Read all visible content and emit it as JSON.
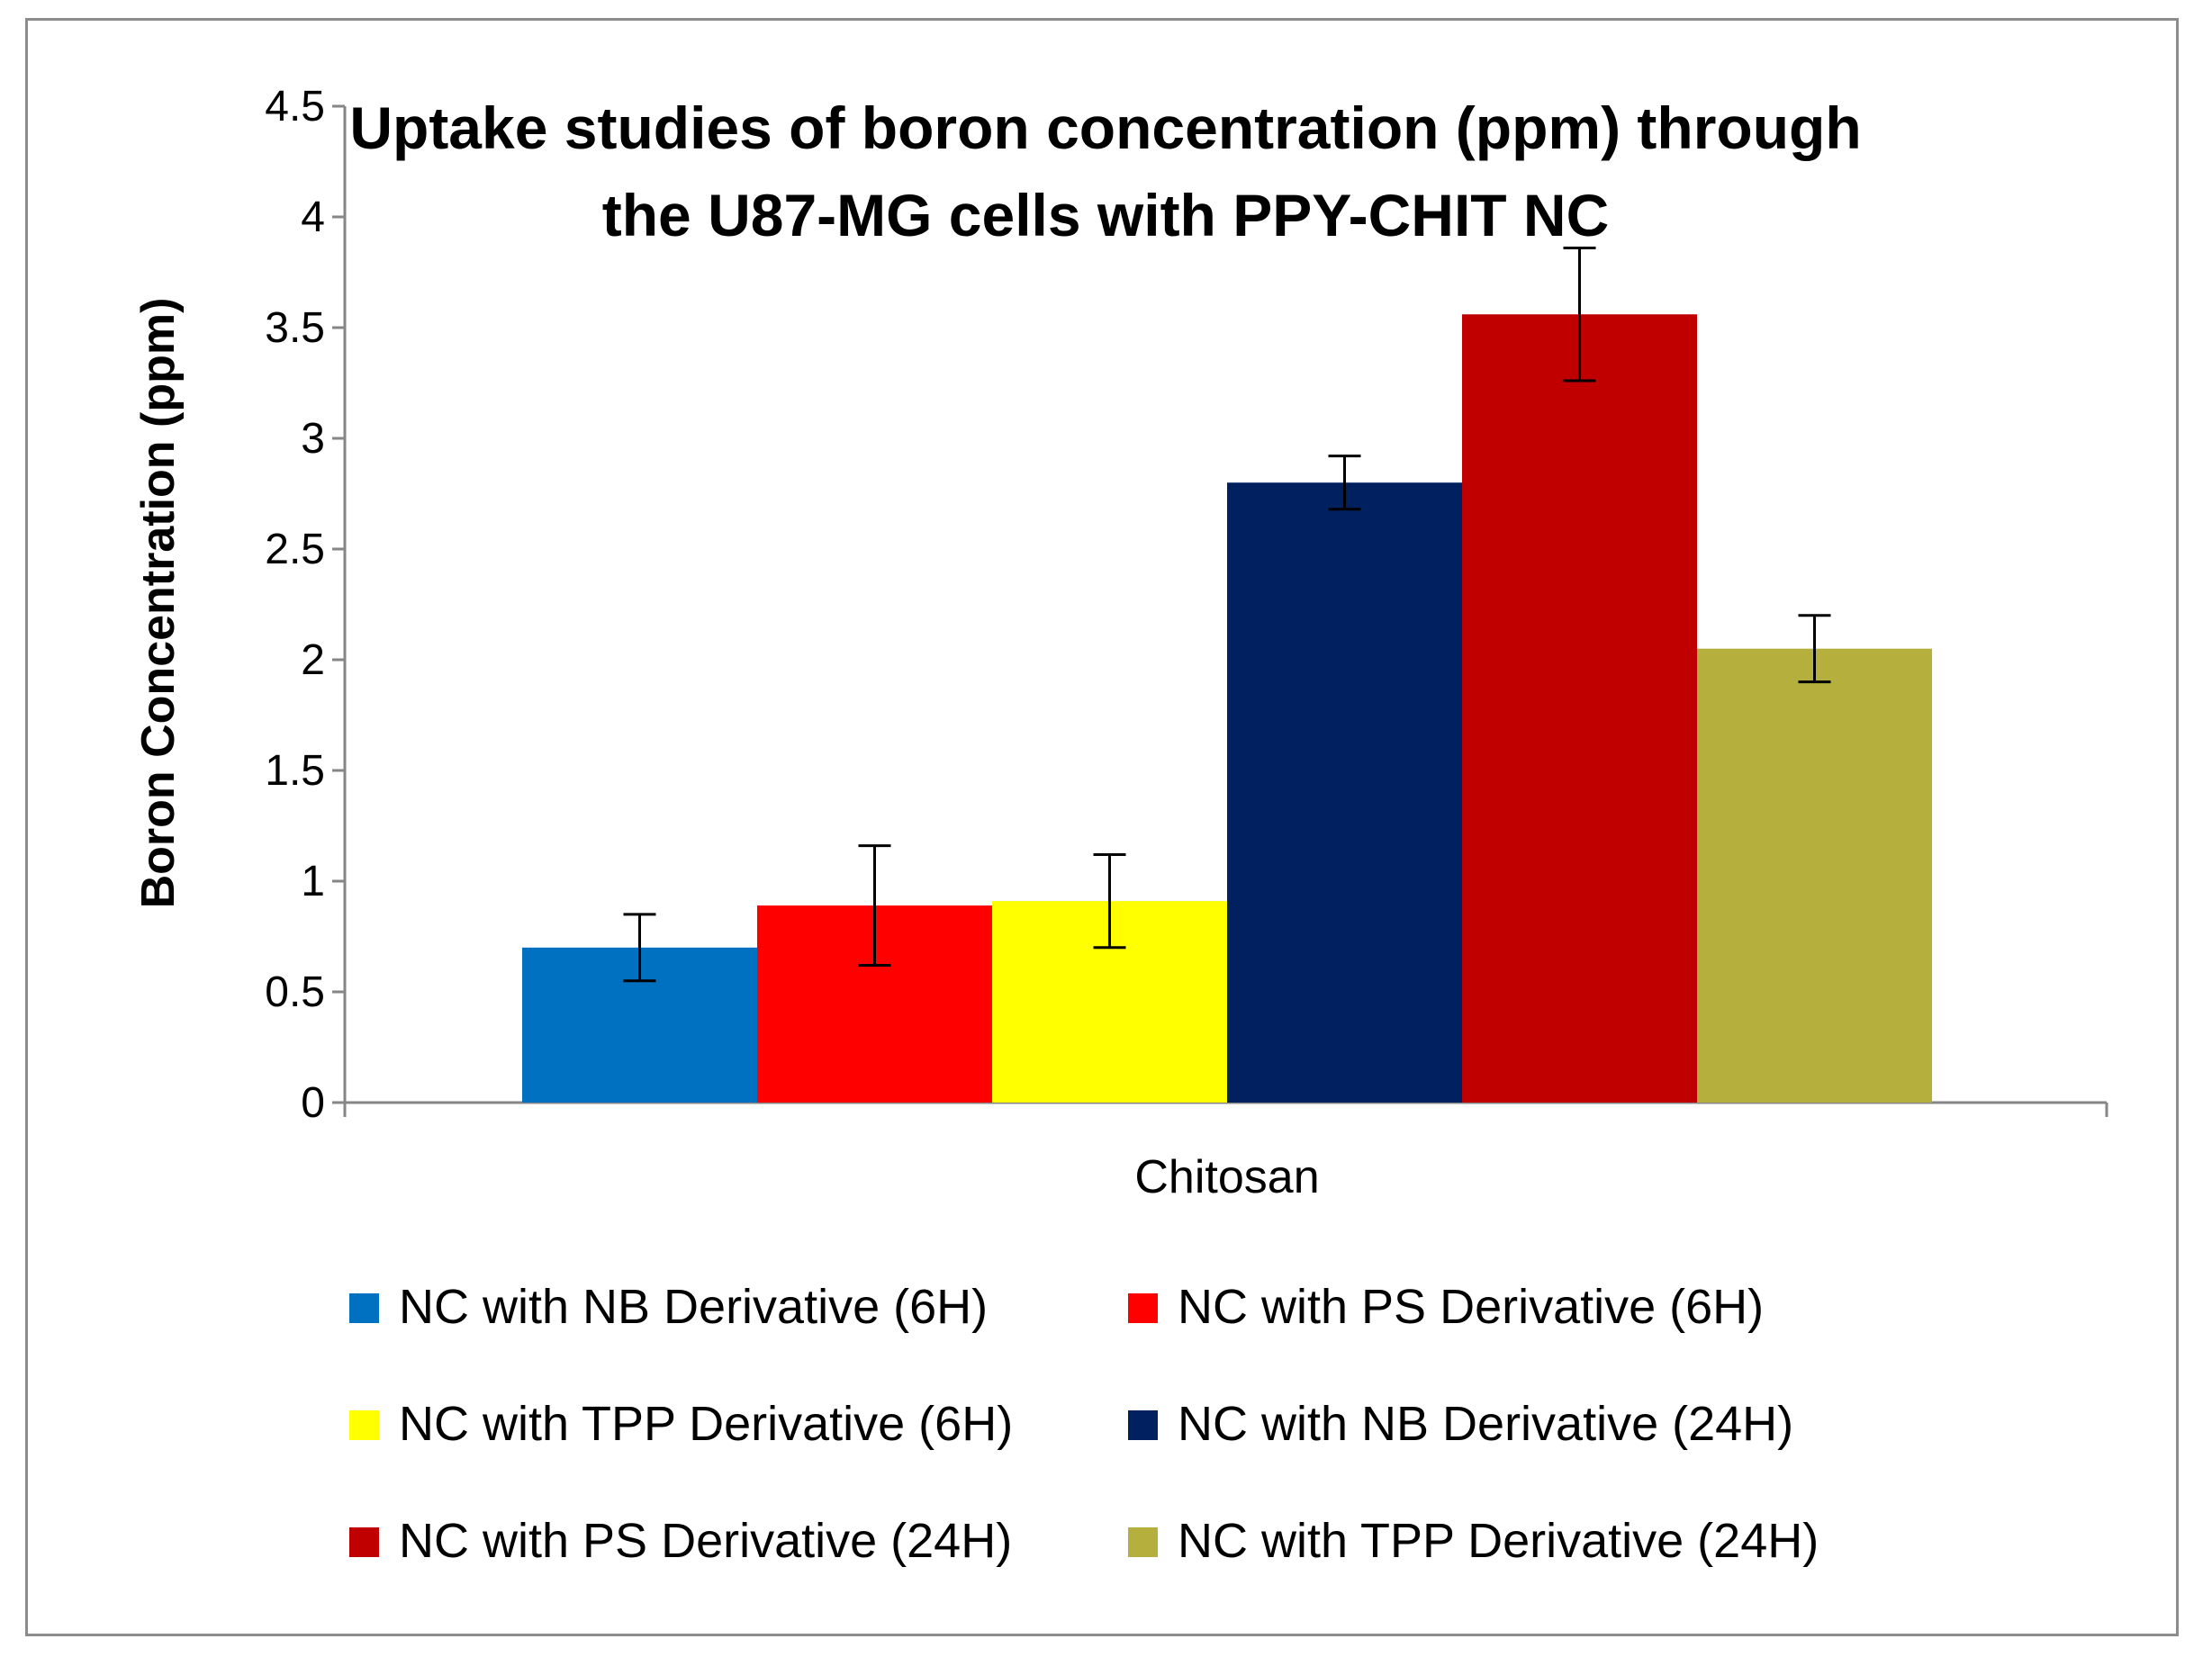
{
  "chart_data": {
    "type": "bar",
    "title_lines": [
      "Uptake studies of boron concentration (ppm) through",
      "the U87-MG cells with PPY-CHIT NC"
    ],
    "xlabel": "",
    "ylabel": "Boron Concentration (ppm)",
    "categories": [
      "Chitosan"
    ],
    "ylim": [
      0,
      4.5
    ],
    "yticks": [
      0,
      0.5,
      1,
      1.5,
      2,
      2.5,
      3,
      3.5,
      4,
      4.5
    ],
    "ytick_labels": [
      "0",
      "0.5",
      "1",
      "1.5",
      "2",
      "2.5",
      "3",
      "3.5",
      "4",
      "4.5"
    ],
    "grid": false,
    "legend_position": "bottom",
    "series": [
      {
        "name": "NC with NB Derivative (6H)",
        "values": [
          0.7
        ],
        "error": [
          0.15
        ],
        "color": "#0070C0"
      },
      {
        "name": "NC with PS Derivative (6H)",
        "values": [
          0.89
        ],
        "error": [
          0.27
        ],
        "color": "#FF0000"
      },
      {
        "name": "NC with TPP Derivative (6H)",
        "values": [
          0.91
        ],
        "error": [
          0.21
        ],
        "color": "#FFFF00"
      },
      {
        "name": "NC with NB Derivative (24H)",
        "values": [
          2.8
        ],
        "error": [
          0.12
        ],
        "color": "#002060"
      },
      {
        "name": "NC with PS Derivative (24H)",
        "values": [
          3.56
        ],
        "error": [
          0.3
        ],
        "color": "#C00000"
      },
      {
        "name": "NC with TPP Derivative (24H)",
        "values": [
          2.05
        ],
        "error": [
          0.15
        ],
        "color": "#B5B03D"
      }
    ]
  }
}
